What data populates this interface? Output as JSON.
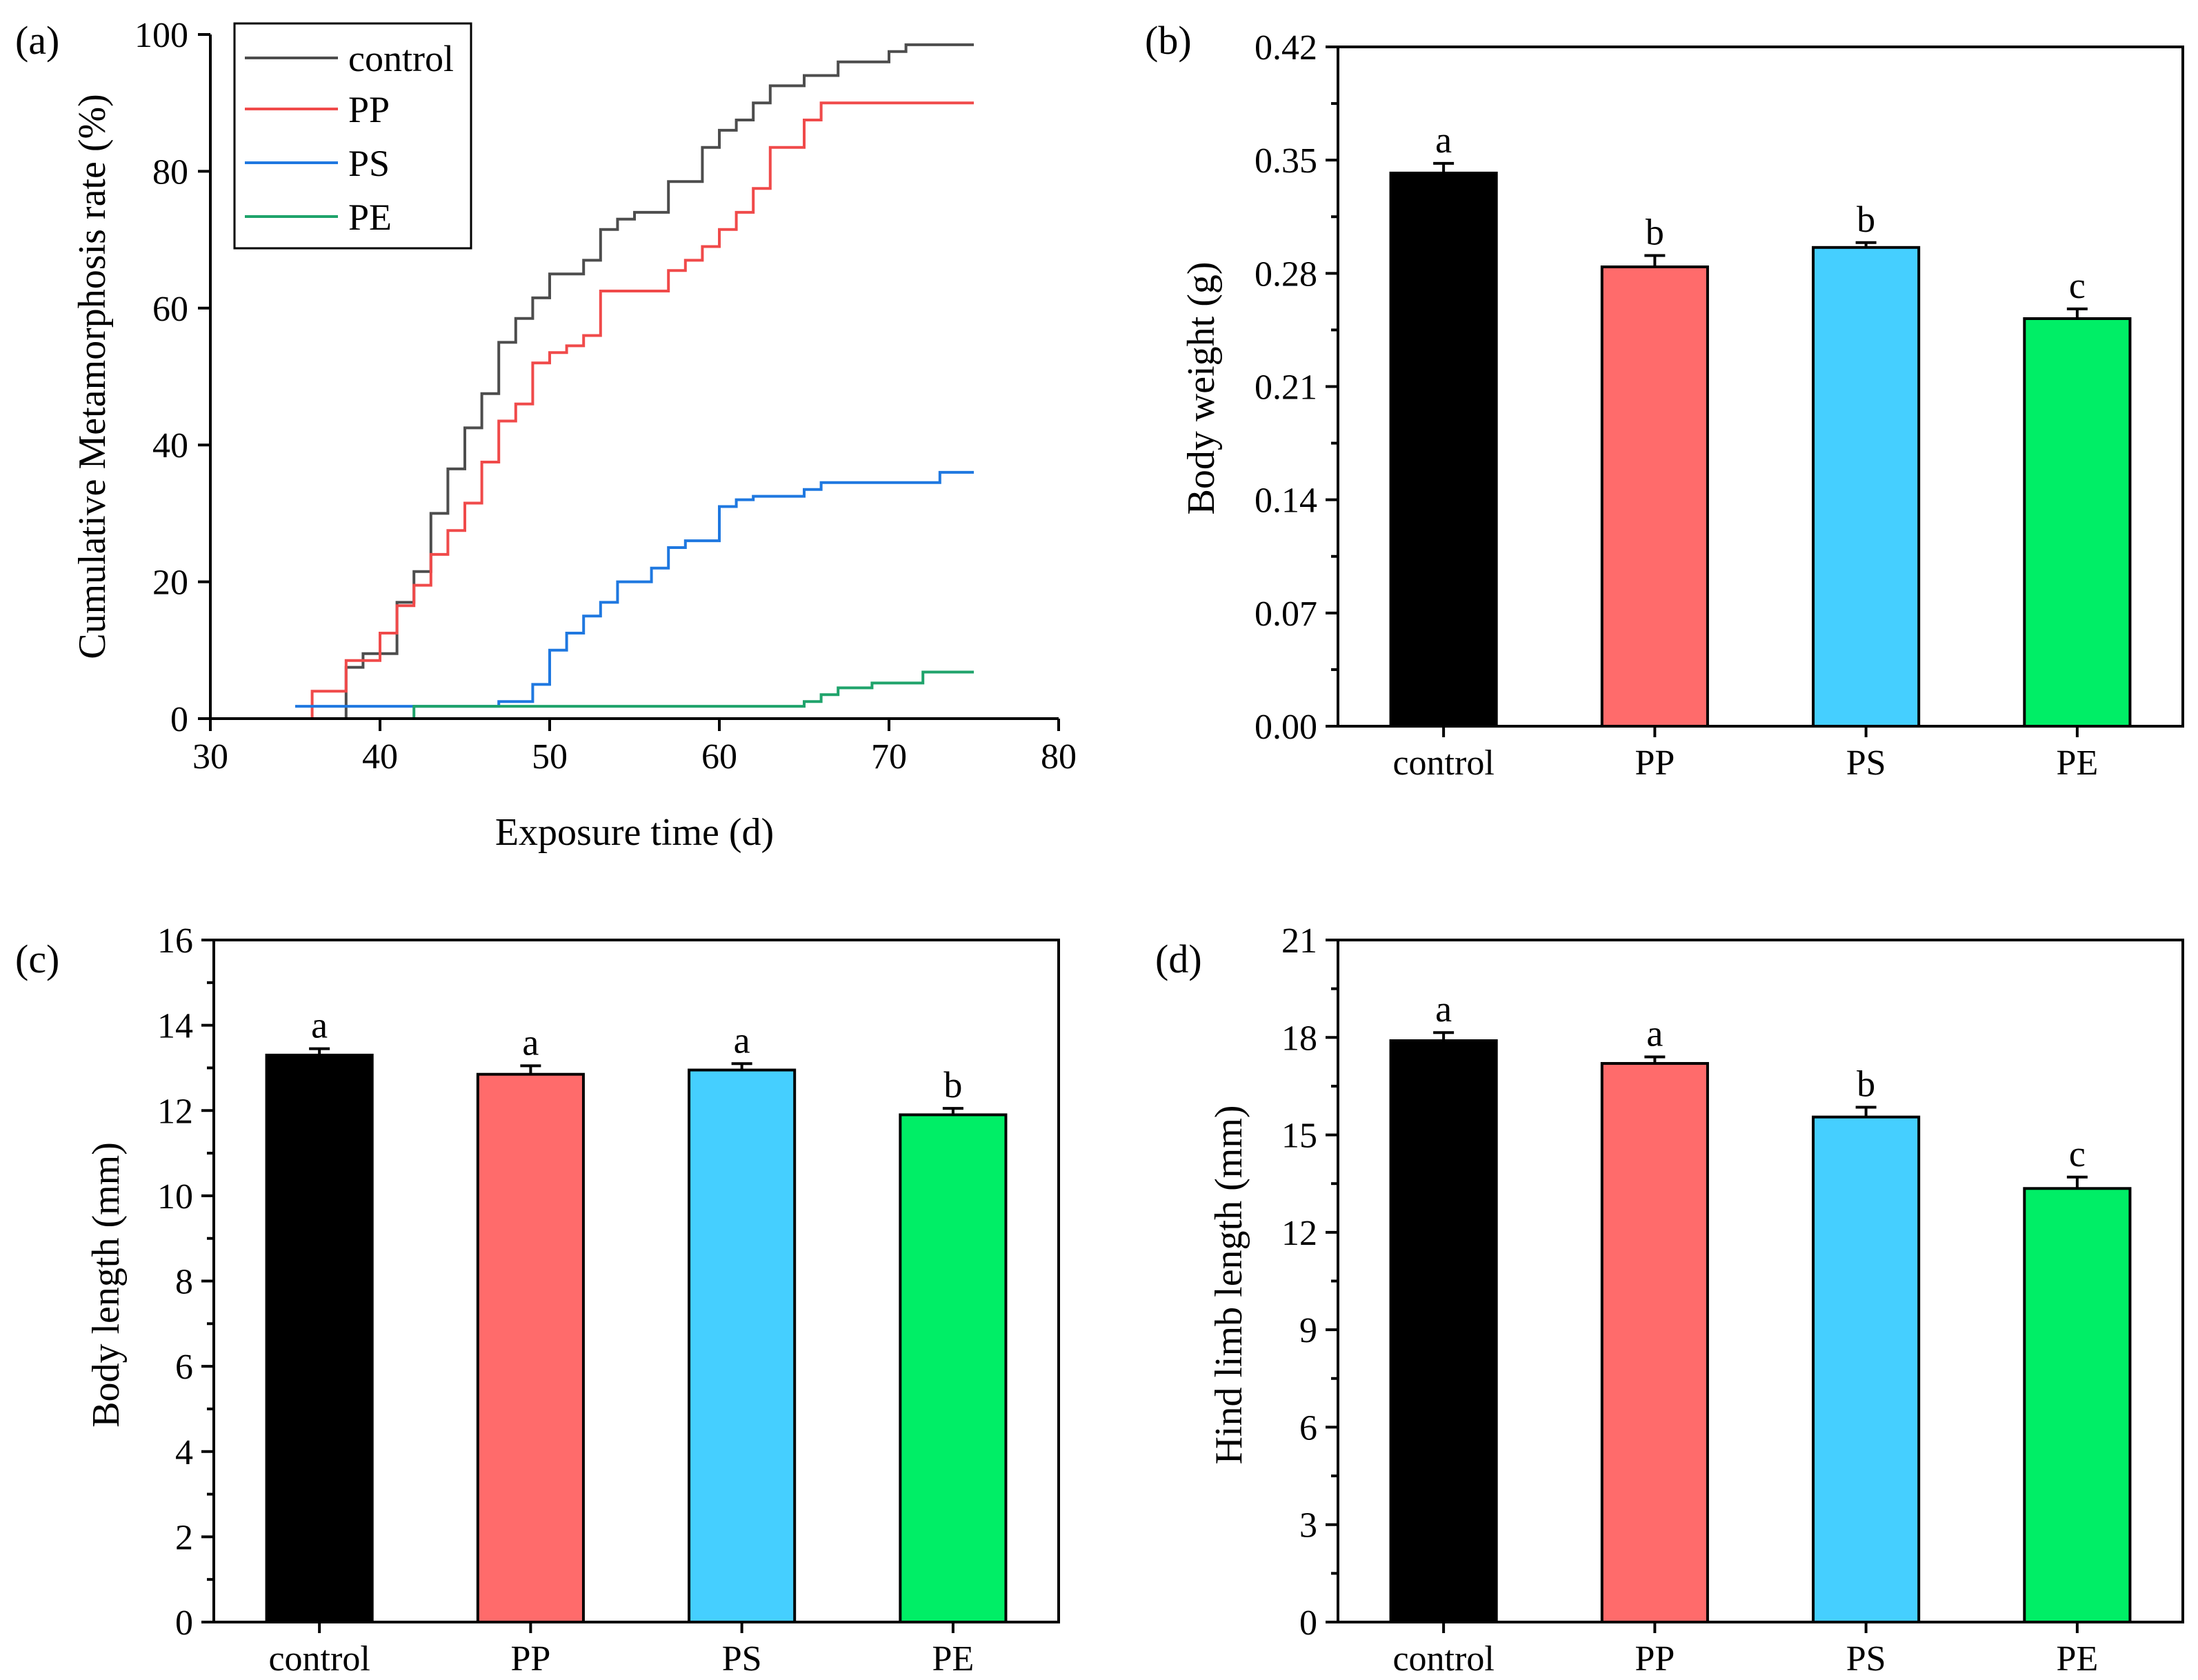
{
  "chart_data": [
    {
      "panel": "(a)",
      "type": "line",
      "step": true,
      "xlabel": "Exposure time (d)",
      "ylabel": "Cumulative Metamorphosis rate (%)",
      "xlim": [
        30,
        80
      ],
      "ylim": [
        0,
        100
      ],
      "xticks": [
        30,
        40,
        50,
        60,
        70,
        80
      ],
      "yticks": [
        0,
        20,
        40,
        60,
        80,
        100
      ],
      "legend": "top-left",
      "series": [
        {
          "name": "control",
          "color": "#4d4d4d",
          "points": [
            [
              38,
              0
            ],
            [
              38,
              7.5
            ],
            [
              39,
              7.5
            ],
            [
              39,
              9.5
            ],
            [
              41,
              9.5
            ],
            [
              41,
              17
            ],
            [
              42,
              17
            ],
            [
              42,
              21.5
            ],
            [
              43,
              21.5
            ],
            [
              43,
              30
            ],
            [
              44,
              30
            ],
            [
              44,
              36.5
            ],
            [
              45,
              36.5
            ],
            [
              45,
              42.5
            ],
            [
              46,
              42.5
            ],
            [
              46,
              47.5
            ],
            [
              47,
              47.5
            ],
            [
              47,
              55
            ],
            [
              48,
              55
            ],
            [
              48,
              58.5
            ],
            [
              49,
              58.5
            ],
            [
              49,
              61.5
            ],
            [
              50,
              61.5
            ],
            [
              50,
              65
            ],
            [
              52,
              65
            ],
            [
              52,
              67
            ],
            [
              53,
              67
            ],
            [
              53,
              71.5
            ],
            [
              54,
              71.5
            ],
            [
              54,
              73
            ],
            [
              55,
              73
            ],
            [
              55,
              74
            ],
            [
              57,
              74
            ],
            [
              57,
              78.5
            ],
            [
              59,
              78.5
            ],
            [
              59,
              83.5
            ],
            [
              60,
              83.5
            ],
            [
              60,
              86
            ],
            [
              61,
              86
            ],
            [
              61,
              87.5
            ],
            [
              62,
              87.5
            ],
            [
              62,
              90
            ],
            [
              63,
              90
            ],
            [
              63,
              92.5
            ],
            [
              65,
              92.5
            ],
            [
              65,
              94
            ],
            [
              67,
              94
            ],
            [
              67,
              96
            ],
            [
              70,
              96
            ],
            [
              70,
              97.5
            ],
            [
              71,
              97.5
            ],
            [
              71,
              98.5
            ],
            [
              75,
              98.5
            ]
          ]
        },
        {
          "name": "PP",
          "color": "#f04a4a",
          "points": [
            [
              36,
              0
            ],
            [
              36,
              4
            ],
            [
              38,
              4
            ],
            [
              38,
              8.5
            ],
            [
              40,
              8.5
            ],
            [
              40,
              12.5
            ],
            [
              41,
              12.5
            ],
            [
              41,
              16.5
            ],
            [
              42,
              16.5
            ],
            [
              42,
              19.5
            ],
            [
              43,
              19.5
            ],
            [
              43,
              24
            ],
            [
              44,
              24
            ],
            [
              44,
              27.5
            ],
            [
              45,
              27.5
            ],
            [
              45,
              31.5
            ],
            [
              46,
              31.5
            ],
            [
              46,
              37.5
            ],
            [
              47,
              37.5
            ],
            [
              47,
              43.5
            ],
            [
              48,
              43.5
            ],
            [
              48,
              46
            ],
            [
              49,
              46
            ],
            [
              49,
              52
            ],
            [
              50,
              52
            ],
            [
              50,
              53.5
            ],
            [
              51,
              53.5
            ],
            [
              51,
              54.5
            ],
            [
              52,
              54.5
            ],
            [
              52,
              56
            ],
            [
              53,
              56
            ],
            [
              53,
              62.5
            ],
            [
              57,
              62.5
            ],
            [
              57,
              65.5
            ],
            [
              58,
              65.5
            ],
            [
              58,
              67
            ],
            [
              59,
              67
            ],
            [
              59,
              69
            ],
            [
              60,
              69
            ],
            [
              60,
              71.5
            ],
            [
              61,
              71.5
            ],
            [
              61,
              74
            ],
            [
              62,
              74
            ],
            [
              62,
              77.5
            ],
            [
              63,
              77.5
            ],
            [
              63,
              83.5
            ],
            [
              65,
              83.5
            ],
            [
              65,
              87.5
            ],
            [
              66,
              87.5
            ],
            [
              66,
              90
            ],
            [
              75,
              90
            ]
          ]
        },
        {
          "name": "PS",
          "color": "#1f78e0",
          "points": [
            [
              35,
              1.8
            ],
            [
              47,
              1.8
            ],
            [
              47,
              2.5
            ],
            [
              49,
              2.5
            ],
            [
              49,
              5
            ],
            [
              50,
              5
            ],
            [
              50,
              10
            ],
            [
              51,
              10
            ],
            [
              51,
              12.5
            ],
            [
              52,
              12.5
            ],
            [
              52,
              15
            ],
            [
              53,
              15
            ],
            [
              53,
              17
            ],
            [
              54,
              17
            ],
            [
              54,
              20
            ],
            [
              56,
              20
            ],
            [
              56,
              22
            ],
            [
              57,
              22
            ],
            [
              57,
              25
            ],
            [
              58,
              25
            ],
            [
              58,
              26
            ],
            [
              60,
              26
            ],
            [
              60,
              31
            ],
            [
              61,
              31
            ],
            [
              61,
              32
            ],
            [
              62,
              32
            ],
            [
              62,
              32.5
            ],
            [
              65,
              32.5
            ],
            [
              65,
              33.5
            ],
            [
              66,
              33.5
            ],
            [
              66,
              34.5
            ],
            [
              73,
              34.5
            ],
            [
              73,
              36
            ],
            [
              75,
              36
            ]
          ]
        },
        {
          "name": "PE",
          "color": "#1fa36b",
          "points": [
            [
              42,
              0
            ],
            [
              42,
              1.8
            ],
            [
              65,
              1.8
            ],
            [
              65,
              2.5
            ],
            [
              66,
              2.5
            ],
            [
              66,
              3.5
            ],
            [
              67,
              3.5
            ],
            [
              67,
              4.5
            ],
            [
              69,
              4.5
            ],
            [
              69,
              5.2
            ],
            [
              72,
              5.2
            ],
            [
              72,
              6.8
            ],
            [
              75,
              6.8
            ]
          ]
        }
      ]
    },
    {
      "panel": "(b)",
      "type": "bar",
      "ylabel": "Body weight (g)",
      "categories": [
        "control",
        "PP",
        "PS",
        "PE"
      ],
      "values": [
        0.342,
        0.284,
        0.296,
        0.252
      ],
      "errors": [
        0.006,
        0.007,
        0.003,
        0.006
      ],
      "significance": [
        "a",
        "b",
        "b",
        "c"
      ],
      "colors": [
        "#000000",
        "#ff6b6b",
        "#45cfff",
        "#00ee66"
      ],
      "ylim": [
        0,
        0.42
      ],
      "yticks": [
        "0.00",
        "0.07",
        "0.14",
        "0.21",
        "0.28",
        "0.35",
        "0.42"
      ]
    },
    {
      "panel": "(c)",
      "type": "bar",
      "ylabel": "Body length (mm)",
      "categories": [
        "control",
        "PP",
        "PS",
        "PE"
      ],
      "values": [
        13.3,
        12.85,
        12.95,
        11.9
      ],
      "errors": [
        0.15,
        0.2,
        0.15,
        0.15
      ],
      "significance": [
        "a",
        "a",
        "a",
        "b"
      ],
      "colors": [
        "#000000",
        "#ff6b6b",
        "#45cfff",
        "#00ee66"
      ],
      "ylim": [
        0,
        16
      ],
      "yticks": [
        "0",
        "2",
        "4",
        "6",
        "8",
        "10",
        "12",
        "14",
        "16"
      ]
    },
    {
      "panel": "(d)",
      "type": "bar",
      "ylabel": "Hind limb length (mm)",
      "categories": [
        "control",
        "PP",
        "PS",
        "PE"
      ],
      "values": [
        17.9,
        17.2,
        15.55,
        13.35
      ],
      "errors": [
        0.25,
        0.2,
        0.3,
        0.35
      ],
      "significance": [
        "a",
        "a",
        "b",
        "c"
      ],
      "colors": [
        "#000000",
        "#ff6b6b",
        "#45cfff",
        "#00ee66"
      ],
      "ylim": [
        0,
        21
      ],
      "yticks": [
        "0",
        "3",
        "6",
        "9",
        "12",
        "15",
        "18",
        "21"
      ]
    }
  ]
}
